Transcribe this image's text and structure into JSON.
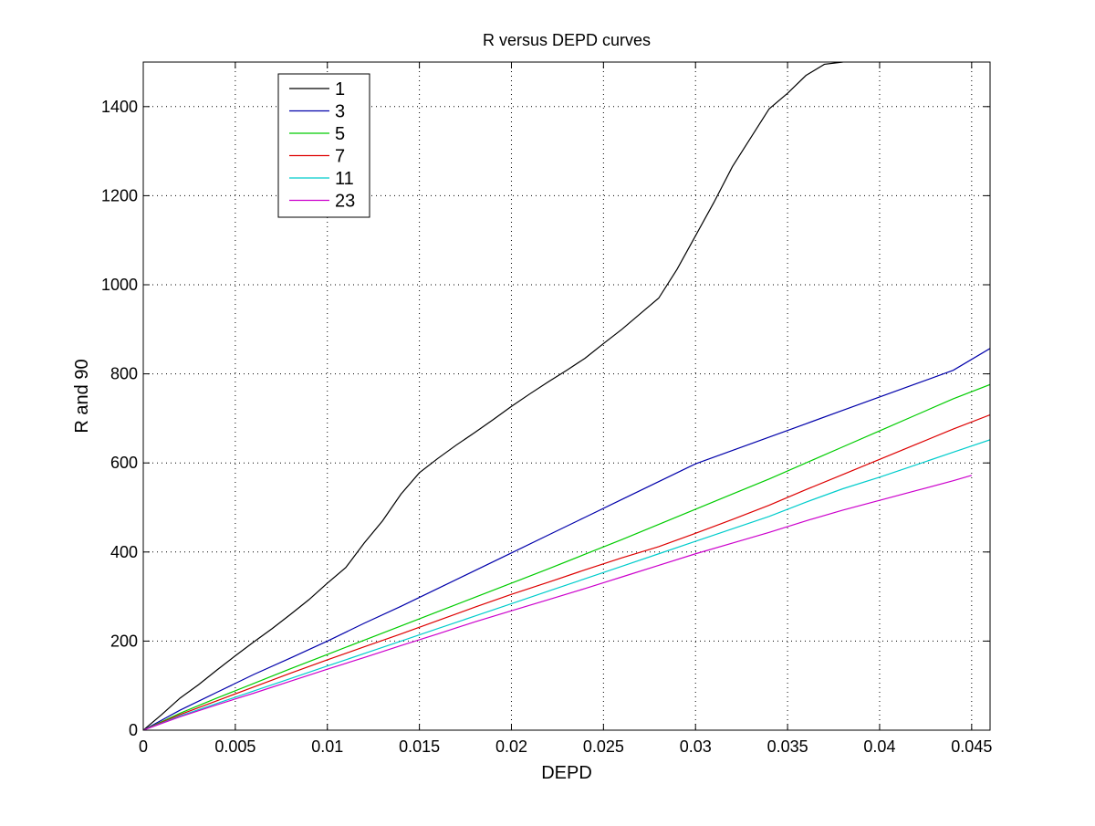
{
  "chart_data": {
    "type": "line",
    "title": "R versus DEPD curves",
    "xlabel": "DEPD",
    "ylabel": "R and 90",
    "xlim": [
      0,
      0.046
    ],
    "ylim": [
      0,
      1500
    ],
    "xticks": [
      0,
      0.005,
      0.01,
      0.015,
      0.02,
      0.025,
      0.03,
      0.035,
      0.04,
      0.045
    ],
    "xtick_labels": [
      "0",
      "0.005",
      "0.01",
      "0.015",
      "0.02",
      "0.025",
      "0.03",
      "0.035",
      "0.04",
      "0.045"
    ],
    "yticks": [
      0,
      200,
      400,
      600,
      800,
      1000,
      1200,
      1400
    ],
    "ytick_labels": [
      "0",
      "200",
      "400",
      "600",
      "800",
      "1000",
      "1200",
      "1400"
    ],
    "grid": true,
    "legend_position": "top-left",
    "series": [
      {
        "name": "1",
        "color": "#000000",
        "points": [
          [
            0,
            0
          ],
          [
            0.001,
            35
          ],
          [
            0.002,
            72
          ],
          [
            0.003,
            102
          ],
          [
            0.004,
            135
          ],
          [
            0.005,
            167
          ],
          [
            0.006,
            198
          ],
          [
            0.007,
            228
          ],
          [
            0.008,
            260
          ],
          [
            0.009,
            293
          ],
          [
            0.01,
            330
          ],
          [
            0.011,
            365
          ],
          [
            0.012,
            420
          ],
          [
            0.013,
            470
          ],
          [
            0.014,
            530
          ],
          [
            0.015,
            578
          ],
          [
            0.016,
            610
          ],
          [
            0.017,
            640
          ],
          [
            0.018,
            668
          ],
          [
            0.019,
            697
          ],
          [
            0.02,
            727
          ],
          [
            0.021,
            755
          ],
          [
            0.022,
            782
          ],
          [
            0.023,
            808
          ],
          [
            0.024,
            835
          ],
          [
            0.025,
            868
          ],
          [
            0.026,
            900
          ],
          [
            0.027,
            935
          ],
          [
            0.028,
            970
          ],
          [
            0.029,
            1035
          ],
          [
            0.03,
            1110
          ],
          [
            0.031,
            1185
          ],
          [
            0.032,
            1265
          ],
          [
            0.033,
            1330
          ],
          [
            0.034,
            1395
          ],
          [
            0.035,
            1430
          ],
          [
            0.036,
            1470
          ],
          [
            0.037,
            1495
          ],
          [
            0.038,
            1500
          ]
        ]
      },
      {
        "name": "3",
        "color": "#0000aa",
        "points": [
          [
            0,
            0
          ],
          [
            0.002,
            45
          ],
          [
            0.004,
            85
          ],
          [
            0.006,
            125
          ],
          [
            0.008,
            162
          ],
          [
            0.01,
            200
          ],
          [
            0.012,
            240
          ],
          [
            0.014,
            278
          ],
          [
            0.016,
            318
          ],
          [
            0.018,
            358
          ],
          [
            0.02,
            398
          ],
          [
            0.022,
            438
          ],
          [
            0.024,
            478
          ],
          [
            0.026,
            518
          ],
          [
            0.028,
            558
          ],
          [
            0.03,
            598
          ],
          [
            0.032,
            628
          ],
          [
            0.034,
            658
          ],
          [
            0.036,
            688
          ],
          [
            0.038,
            718
          ],
          [
            0.04,
            748
          ],
          [
            0.042,
            778
          ],
          [
            0.044,
            808
          ],
          [
            0.046,
            857
          ]
        ]
      },
      {
        "name": "5",
        "color": "#00cc00",
        "points": [
          [
            0,
            0
          ],
          [
            0.002,
            38
          ],
          [
            0.004,
            72
          ],
          [
            0.006,
            105
          ],
          [
            0.008,
            138
          ],
          [
            0.01,
            170
          ],
          [
            0.012,
            202
          ],
          [
            0.014,
            234
          ],
          [
            0.016,
            266
          ],
          [
            0.018,
            298
          ],
          [
            0.02,
            330
          ],
          [
            0.022,
            362
          ],
          [
            0.024,
            395
          ],
          [
            0.026,
            428
          ],
          [
            0.028,
            462
          ],
          [
            0.03,
            496
          ],
          [
            0.032,
            530
          ],
          [
            0.034,
            564
          ],
          [
            0.036,
            600
          ],
          [
            0.038,
            636
          ],
          [
            0.04,
            672
          ],
          [
            0.042,
            708
          ],
          [
            0.044,
            744
          ],
          [
            0.046,
            776
          ]
        ]
      },
      {
        "name": "7",
        "color": "#dd0000",
        "points": [
          [
            0,
            0
          ],
          [
            0.002,
            35
          ],
          [
            0.004,
            66
          ],
          [
            0.006,
            97
          ],
          [
            0.008,
            128
          ],
          [
            0.01,
            158
          ],
          [
            0.012,
            187
          ],
          [
            0.014,
            216
          ],
          [
            0.016,
            246
          ],
          [
            0.018,
            276
          ],
          [
            0.02,
            305
          ],
          [
            0.022,
            332
          ],
          [
            0.024,
            360
          ],
          [
            0.026,
            387
          ],
          [
            0.028,
            412
          ],
          [
            0.03,
            442
          ],
          [
            0.032,
            473
          ],
          [
            0.034,
            505
          ],
          [
            0.036,
            540
          ],
          [
            0.038,
            574
          ],
          [
            0.04,
            608
          ],
          [
            0.042,
            642
          ],
          [
            0.044,
            676
          ],
          [
            0.046,
            708
          ]
        ]
      },
      {
        "name": "11",
        "color": "#00cccc",
        "points": [
          [
            0,
            0
          ],
          [
            0.002,
            32
          ],
          [
            0.004,
            60
          ],
          [
            0.006,
            88
          ],
          [
            0.008,
            116
          ],
          [
            0.01,
            144
          ],
          [
            0.012,
            172
          ],
          [
            0.014,
            200
          ],
          [
            0.016,
            228
          ],
          [
            0.018,
            256
          ],
          [
            0.02,
            284
          ],
          [
            0.022,
            312
          ],
          [
            0.024,
            340
          ],
          [
            0.026,
            368
          ],
          [
            0.028,
            396
          ],
          [
            0.03,
            424
          ],
          [
            0.032,
            452
          ],
          [
            0.034,
            480
          ],
          [
            0.036,
            512
          ],
          [
            0.038,
            542
          ],
          [
            0.04,
            568
          ],
          [
            0.042,
            596
          ],
          [
            0.044,
            624
          ],
          [
            0.046,
            652
          ]
        ]
      },
      {
        "name": "23",
        "color": "#cc00cc",
        "points": [
          [
            0,
            0
          ],
          [
            0.002,
            30
          ],
          [
            0.004,
            57
          ],
          [
            0.006,
            83
          ],
          [
            0.008,
            110
          ],
          [
            0.01,
            137
          ],
          [
            0.012,
            163
          ],
          [
            0.014,
            190
          ],
          [
            0.016,
            216
          ],
          [
            0.018,
            243
          ],
          [
            0.02,
            268
          ],
          [
            0.022,
            293
          ],
          [
            0.024,
            318
          ],
          [
            0.026,
            344
          ],
          [
            0.028,
            370
          ],
          [
            0.03,
            396
          ],
          [
            0.032,
            420
          ],
          [
            0.034,
            444
          ],
          [
            0.036,
            470
          ],
          [
            0.038,
            494
          ],
          [
            0.04,
            516
          ],
          [
            0.042,
            538
          ],
          [
            0.044,
            560
          ],
          [
            0.045,
            572
          ]
        ]
      }
    ]
  }
}
